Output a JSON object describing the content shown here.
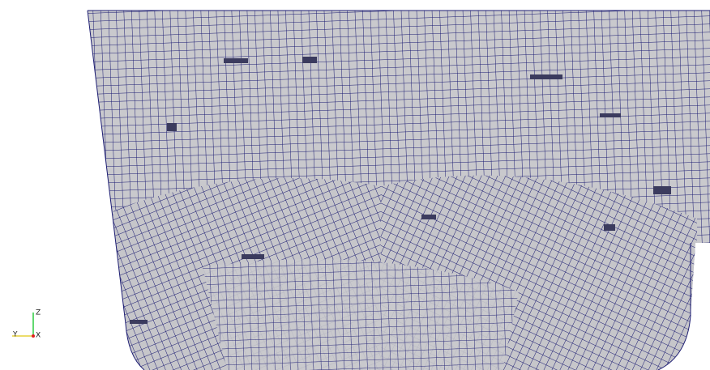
{
  "axes_triad": {
    "z_label": "Z",
    "y_label": "Y",
    "x_label": "X"
  }
}
